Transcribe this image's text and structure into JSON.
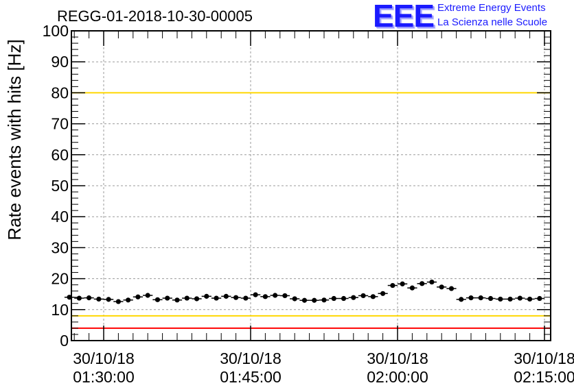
{
  "chart_data": {
    "type": "scatter",
    "title": "REGG-01-2018-10-30-00005",
    "ylabel": "Rate events with hits [Hz]",
    "xlabel": "",
    "ylim": [
      0,
      100
    ],
    "y_ticks": [
      "0",
      "10",
      "20",
      "30",
      "40",
      "50",
      "60",
      "70",
      "80",
      "90",
      "100"
    ],
    "x_ticks": [
      {
        "date": "30/10/18",
        "time": "01:30:00",
        "minutes": 0
      },
      {
        "date": "30/10/18",
        "time": "01:45:00",
        "minutes": 15
      },
      {
        "date": "30/10/18",
        "time": "02:00:00",
        "minutes": 30
      },
      {
        "date": "30/10/18",
        "time": "02:15:00",
        "minutes": 45
      }
    ],
    "grid": true,
    "reference_lines": [
      {
        "y": 100,
        "color": "#ff0000"
      },
      {
        "y": 80,
        "color": "#ffd700"
      },
      {
        "y": 8,
        "color": "#ffd700"
      },
      {
        "y": 4,
        "color": "#ff0000"
      }
    ],
    "series": [
      {
        "color": "#000000",
        "x": [
          -3.5,
          -2.5,
          -1.5,
          -0.5,
          0.5,
          1.5,
          2.5,
          3.5,
          4.5,
          5.5,
          6.5,
          7.5,
          8.5,
          9.5,
          10.5,
          11.5,
          12.5,
          13.5,
          14.5,
          15.5,
          16.5,
          17.5,
          18.5,
          19.5,
          20.5,
          21.5,
          22.5,
          23.5,
          24.5,
          25.5,
          26.5,
          27.5,
          28.5,
          29.5,
          30.5,
          31.5,
          32.5,
          33.5,
          34.5,
          35.5,
          36.5,
          37.5,
          38.5,
          39.5,
          40.5,
          41.5,
          42.5,
          43.5,
          44.5
        ],
        "y": [
          14.0,
          13.7,
          13.8,
          13.4,
          13.3,
          12.6,
          13.1,
          14.1,
          14.6,
          13.2,
          13.7,
          13.1,
          13.7,
          13.5,
          14.3,
          13.7,
          14.3,
          13.9,
          13.7,
          14.8,
          14.2,
          14.6,
          14.5,
          13.5,
          13.0,
          13.0,
          13.1,
          13.6,
          13.6,
          13.9,
          14.5,
          14.2,
          15.2,
          17.8,
          18.3,
          17.0,
          18.4,
          18.9,
          17.3,
          16.8,
          13.3,
          13.8,
          13.8,
          13.6,
          13.4,
          13.4,
          13.7,
          13.4,
          13.6
        ],
        "y_err": 0.6,
        "x_err": 0.5
      }
    ]
  },
  "logo": {
    "mark": "EEE",
    "line1": "Extreme Energy Events",
    "line2": "La Scienza nelle Scuole"
  }
}
